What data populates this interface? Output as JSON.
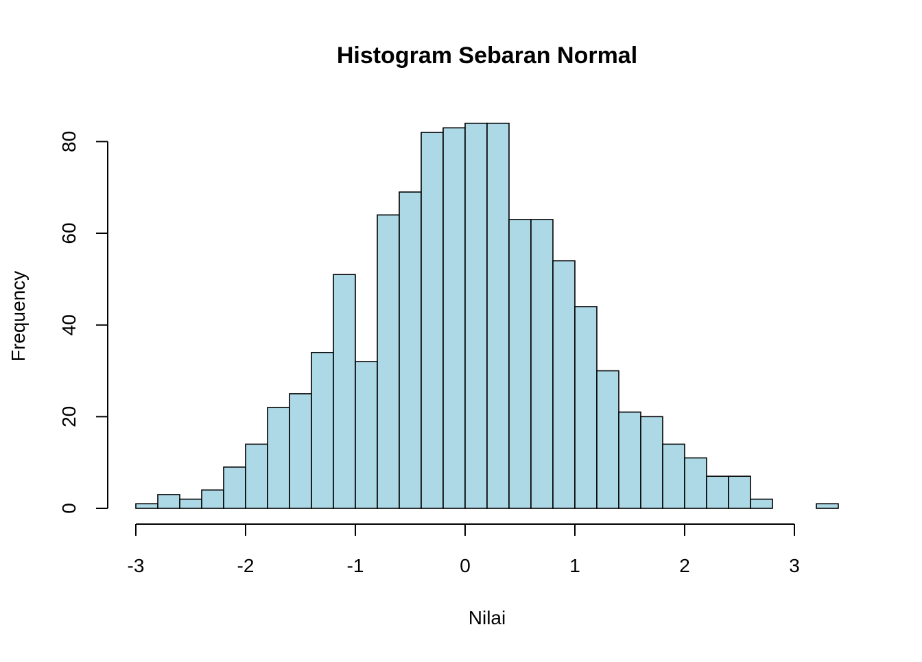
{
  "chart_data": {
    "type": "bar",
    "title": "Histogram Sebaran Normal",
    "xlabel": "Nilai",
    "ylabel": "Frequency",
    "bar_color": "#ADD8E6",
    "bar_edge_color": "#000000",
    "xlim": [
      -3,
      3.4
    ],
    "ylim": [
      0,
      84
    ],
    "x_ticks": [
      -3,
      -2,
      -1,
      0,
      1,
      2,
      3
    ],
    "x_tick_labels": [
      "-3",
      "-2",
      "-1",
      "0",
      "1",
      "2",
      "3"
    ],
    "y_ticks": [
      0,
      20,
      40,
      60,
      80
    ],
    "y_tick_labels": [
      "0",
      "20",
      "40",
      "60",
      "80"
    ],
    "bin_width": 0.2,
    "bins": [
      {
        "x0": -3.0,
        "x1": -2.8,
        "count": 1
      },
      {
        "x0": -2.8,
        "x1": -2.6,
        "count": 3
      },
      {
        "x0": -2.6,
        "x1": -2.4,
        "count": 2
      },
      {
        "x0": -2.4,
        "x1": -2.2,
        "count": 4
      },
      {
        "x0": -2.2,
        "x1": -2.0,
        "count": 9
      },
      {
        "x0": -2.0,
        "x1": -1.8,
        "count": 14
      },
      {
        "x0": -1.8,
        "x1": -1.6,
        "count": 22
      },
      {
        "x0": -1.6,
        "x1": -1.4,
        "count": 25
      },
      {
        "x0": -1.4,
        "x1": -1.2,
        "count": 34
      },
      {
        "x0": -1.2,
        "x1": -1.0,
        "count": 51
      },
      {
        "x0": -1.0,
        "x1": -0.8,
        "count": 32
      },
      {
        "x0": -0.8,
        "x1": -0.6,
        "count": 64
      },
      {
        "x0": -0.6,
        "x1": -0.4,
        "count": 69
      },
      {
        "x0": -0.4,
        "x1": -0.2,
        "count": 82
      },
      {
        "x0": -0.2,
        "x1": 0.0,
        "count": 83
      },
      {
        "x0": 0.0,
        "x1": 0.2,
        "count": 84
      },
      {
        "x0": 0.2,
        "x1": 0.4,
        "count": 84
      },
      {
        "x0": 0.4,
        "x1": 0.6,
        "count": 63
      },
      {
        "x0": 0.6,
        "x1": 0.8,
        "count": 63
      },
      {
        "x0": 0.8,
        "x1": 1.0,
        "count": 54
      },
      {
        "x0": 1.0,
        "x1": 1.2,
        "count": 44
      },
      {
        "x0": 1.2,
        "x1": 1.4,
        "count": 30
      },
      {
        "x0": 1.4,
        "x1": 1.6,
        "count": 21
      },
      {
        "x0": 1.6,
        "x1": 1.8,
        "count": 20
      },
      {
        "x0": 1.8,
        "x1": 2.0,
        "count": 14
      },
      {
        "x0": 2.0,
        "x1": 2.2,
        "count": 11
      },
      {
        "x0": 2.2,
        "x1": 2.4,
        "count": 7
      },
      {
        "x0": 2.4,
        "x1": 2.6,
        "count": 7
      },
      {
        "x0": 2.6,
        "x1": 2.8,
        "count": 2
      },
      {
        "x0": 2.8,
        "x1": 3.0,
        "count": 0
      },
      {
        "x0": 3.0,
        "x1": 3.2,
        "count": 0
      },
      {
        "x0": 3.2,
        "x1": 3.4,
        "count": 1
      }
    ],
    "grid": false,
    "legend": "none"
  }
}
